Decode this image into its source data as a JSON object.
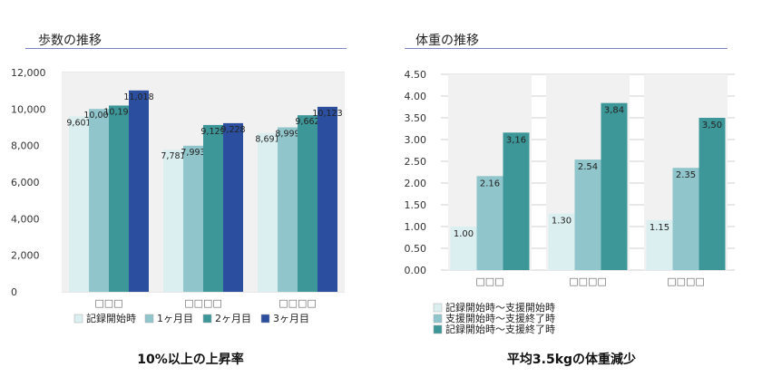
{
  "chart_data": [
    {
      "type": "bar",
      "title": "歩数の推移",
      "categories": [
        "□□□",
        "□□□□",
        "□□□□"
      ],
      "series": [
        {
          "name": "記録開始時",
          "values": [
            9601,
            7781,
            8691
          ],
          "labels": [
            "9,601",
            "7,781",
            "8,691"
          ],
          "color": "#dbeff0"
        },
        {
          "name": "1ヶ月目",
          "values": [
            10005,
            7993,
            8999
          ],
          "labels": [
            "10,005",
            "7,993",
            "8,999"
          ],
          "color": "#8fc5cb"
        },
        {
          "name": "2ヶ月目",
          "values": [
            10193,
            9129,
            9662
          ],
          "labels": [
            "10,193",
            "9,129",
            "9,662"
          ],
          "color": "#3d9698"
        },
        {
          "name": "3ヶ月目",
          "values": [
            11018,
            9228,
            10123
          ],
          "labels": [
            "11,018",
            "9,228",
            "10,123"
          ],
          "color": "#2b4e9e"
        }
      ],
      "ylim": [
        0,
        12000
      ],
      "yticks": [
        "0",
        "2,000",
        "4,000",
        "6,000",
        "8,000",
        "10,000",
        "12,000"
      ],
      "grid": true,
      "legend": "bottom",
      "caption": "10%以上の上昇率"
    },
    {
      "type": "bar",
      "title": "体重の推移",
      "categories": [
        "□□□",
        "□□□□",
        "□□□□"
      ],
      "series": [
        {
          "name": "記録開始時～支援開始時",
          "values": [
            1.0,
            1.3,
            1.15
          ],
          "labels": [
            "1.00",
            "1.30",
            "1.15"
          ],
          "color": "#dbeff0"
        },
        {
          "name": "支援開始時～支援終了時",
          "values": [
            2.16,
            2.54,
            2.35
          ],
          "labels": [
            "2.16",
            "2.54",
            "2.35"
          ],
          "color": "#8fc5cb"
        },
        {
          "name": "記録開始時～支援終了時",
          "values": [
            3.16,
            3.84,
            3.5
          ],
          "labels": [
            "3,16",
            "3,84",
            "3,50"
          ],
          "color": "#3d9698"
        }
      ],
      "ylim": [
        0,
        4.5
      ],
      "yticks": [
        "0.00",
        "0.50",
        "1.00",
        "1.50",
        "2.00",
        "2.50",
        "3.00",
        "3.50",
        "4.00",
        "4.50"
      ],
      "grid": true,
      "legend": "bottom",
      "caption": "平均3.5kgの体重減少"
    }
  ]
}
